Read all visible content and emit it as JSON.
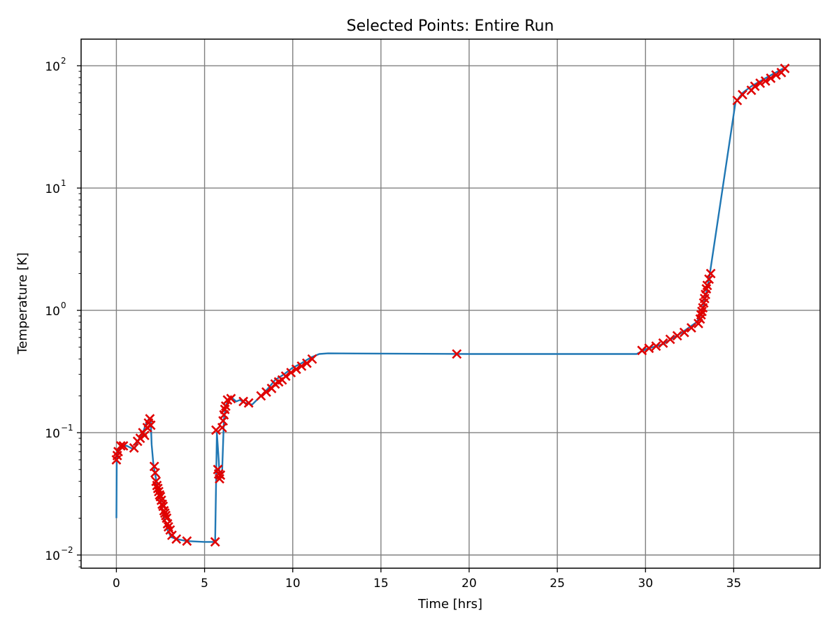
{
  "chart_data": {
    "type": "line",
    "title": "Selected Points: Entire Run",
    "xlabel": "Time [hrs]",
    "ylabel": "Temperature [K]",
    "xlim": [
      -2,
      39.9
    ],
    "ylim": [
      0.0078,
      165
    ],
    "yscale": "log",
    "grid": true,
    "x_ticks": [
      {
        "value": 0,
        "label": "0"
      },
      {
        "value": 5,
        "label": "5"
      },
      {
        "value": 10,
        "label": "10"
      },
      {
        "value": 15,
        "label": "15"
      },
      {
        "value": 20,
        "label": "20"
      },
      {
        "value": 25,
        "label": "25"
      },
      {
        "value": 30,
        "label": "30"
      },
      {
        "value": 35,
        "label": "35"
      }
    ],
    "y_ticks": [
      {
        "value": 0.01,
        "base": "10",
        "exp": "−2"
      },
      {
        "value": 0.1,
        "base": "10",
        "exp": "−1"
      },
      {
        "value": 1,
        "base": "10",
        "exp": "0"
      },
      {
        "value": 10,
        "base": "10",
        "exp": "1"
      },
      {
        "value": 100,
        "base": "10",
        "exp": "2"
      }
    ],
    "colors": {
      "line": "#1f77b4",
      "markers": "#e00000",
      "grid": "#808080"
    },
    "line": {
      "x": [
        0,
        0.02,
        0.1,
        0.3,
        0.6,
        0.9,
        1.05,
        1.3,
        1.5,
        1.7,
        1.85,
        1.95,
        2.0,
        2.1,
        2.3,
        2.5,
        2.7,
        2.9,
        3.1,
        3.4,
        4.0,
        5.0,
        5.6,
        5.7,
        5.8,
        5.85,
        5.9,
        6.0,
        6.1,
        6.2,
        6.35,
        6.6,
        6.8,
        7.0,
        7.3,
        7.7,
        8.2,
        8.6,
        9.0,
        9.5,
        10.0,
        10.5,
        11.0,
        11.5,
        12.0,
        20.0,
        29.5,
        30.0,
        31.0,
        32.0,
        32.9,
        33.2,
        33.4,
        33.6,
        35.1,
        35.5,
        36.0,
        37.0,
        37.8
      ],
      "y": [
        0.02,
        0.06,
        0.072,
        0.078,
        0.078,
        0.074,
        0.075,
        0.09,
        0.1,
        0.12,
        0.13,
        0.125,
        0.08,
        0.055,
        0.038,
        0.028,
        0.02,
        0.016,
        0.014,
        0.0135,
        0.013,
        0.0128,
        0.0128,
        0.1,
        0.06,
        0.045,
        0.043,
        0.05,
        0.13,
        0.165,
        0.185,
        0.19,
        0.18,
        0.185,
        0.175,
        0.17,
        0.2,
        0.23,
        0.27,
        0.3,
        0.34,
        0.37,
        0.41,
        0.44,
        0.445,
        0.44,
        0.44,
        0.48,
        0.53,
        0.65,
        0.8,
        0.95,
        1.3,
        1.8,
        50,
        60,
        68,
        82,
        95
      ]
    },
    "markers": {
      "x": [
        0.0,
        0.05,
        0.1,
        0.25,
        0.4,
        1.0,
        1.2,
        1.35,
        1.5,
        1.6,
        1.75,
        1.82,
        1.9,
        1.95,
        2.15,
        2.2,
        2.25,
        2.3,
        2.35,
        2.4,
        2.45,
        2.5,
        2.55,
        2.6,
        2.65,
        2.7,
        2.75,
        2.8,
        2.85,
        2.9,
        2.95,
        3.05,
        3.15,
        3.4,
        4.0,
        5.6,
        5.65,
        5.75,
        5.8,
        5.85,
        5.9,
        6.0,
        6.05,
        6.1,
        6.15,
        6.2,
        6.3,
        6.5,
        7.2,
        7.5,
        8.2,
        8.5,
        8.8,
        9.0,
        9.2,
        9.4,
        9.6,
        9.9,
        10.2,
        10.5,
        10.8,
        11.1,
        19.3,
        29.8,
        30.2,
        30.6,
        31.0,
        31.4,
        31.8,
        32.2,
        32.6,
        33.0,
        33.1,
        33.15,
        33.2,
        33.25,
        33.3,
        33.35,
        33.4,
        33.45,
        33.5,
        33.6,
        33.7,
        35.2,
        35.5,
        36.0,
        36.2,
        36.5,
        36.8,
        37.1,
        37.4,
        37.7,
        37.9
      ],
      "y": [
        0.06,
        0.065,
        0.07,
        0.078,
        0.078,
        0.075,
        0.085,
        0.09,
        0.1,
        0.095,
        0.11,
        0.12,
        0.13,
        0.115,
        0.053,
        0.047,
        0.04,
        0.037,
        0.035,
        0.033,
        0.031,
        0.03,
        0.028,
        0.026,
        0.025,
        0.023,
        0.022,
        0.021,
        0.02,
        0.018,
        0.017,
        0.016,
        0.0145,
        0.0135,
        0.013,
        0.0128,
        0.105,
        0.05,
        0.046,
        0.042,
        0.045,
        0.11,
        0.125,
        0.14,
        0.155,
        0.165,
        0.185,
        0.19,
        0.18,
        0.175,
        0.2,
        0.215,
        0.23,
        0.25,
        0.26,
        0.27,
        0.29,
        0.31,
        0.33,
        0.35,
        0.37,
        0.4,
        0.44,
        0.47,
        0.49,
        0.51,
        0.54,
        0.58,
        0.62,
        0.66,
        0.72,
        0.78,
        0.85,
        0.92,
        0.98,
        1.05,
        1.15,
        1.25,
        1.35,
        1.5,
        1.6,
        1.8,
        2.0,
        52,
        58,
        63,
        68,
        72,
        75,
        79,
        84,
        88,
        95
      ]
    }
  }
}
